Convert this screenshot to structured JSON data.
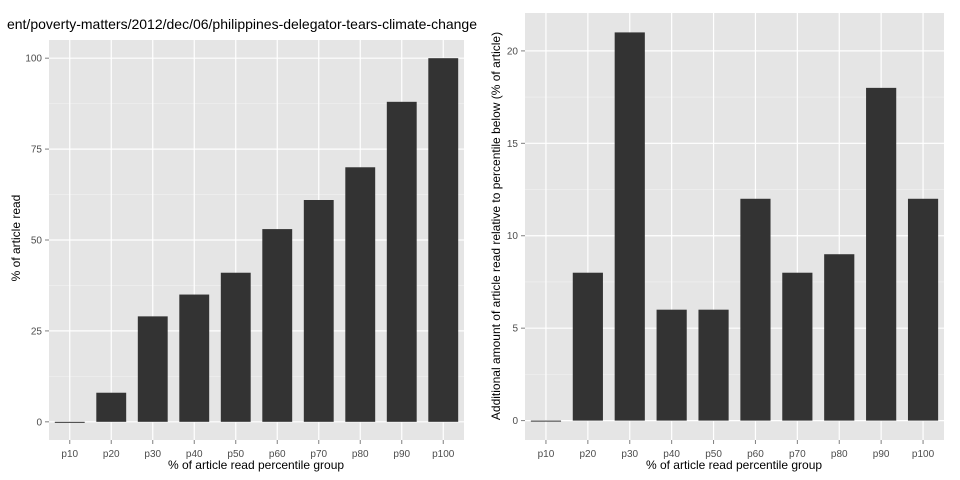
{
  "chart_data": [
    {
      "type": "bar",
      "title": "ent/poverty-matters/2012/dec/06/philippines-delegator-tears-climate-change",
      "xlabel": "% of article read percentile group",
      "ylabel": "% of article read",
      "categories": [
        "p10",
        "p20",
        "p30",
        "p40",
        "p50",
        "p60",
        "p70",
        "p80",
        "p90",
        "p100"
      ],
      "values": [
        0,
        8,
        29,
        35,
        41,
        53,
        61,
        70,
        88,
        100
      ],
      "ylim": [
        -5,
        105
      ],
      "yticks": [
        0,
        25,
        50,
        75,
        100
      ],
      "ytick_labels": [
        "0",
        "25",
        "50",
        "75",
        "100"
      ],
      "grid": true,
      "bar_color": "#333333",
      "panel_color": "#e5e5e5"
    },
    {
      "type": "bar",
      "title": "",
      "xlabel": "% of article read percentile group",
      "ylabel": "Additional amount of article read relative to percentile below (% of article)",
      "categories": [
        "p10",
        "p20",
        "p30",
        "p40",
        "p50",
        "p60",
        "p70",
        "p80",
        "p90",
        "p100"
      ],
      "values": [
        0,
        8,
        21,
        6,
        6,
        12,
        8,
        9,
        18,
        12
      ],
      "ylim": [
        -1.05,
        22.05
      ],
      "yticks": [
        0,
        5,
        10,
        15,
        20
      ],
      "ytick_labels": [
        "0",
        "5",
        "10",
        "15",
        "20"
      ],
      "grid": true,
      "bar_color": "#333333",
      "panel_color": "#e5e5e5"
    }
  ]
}
